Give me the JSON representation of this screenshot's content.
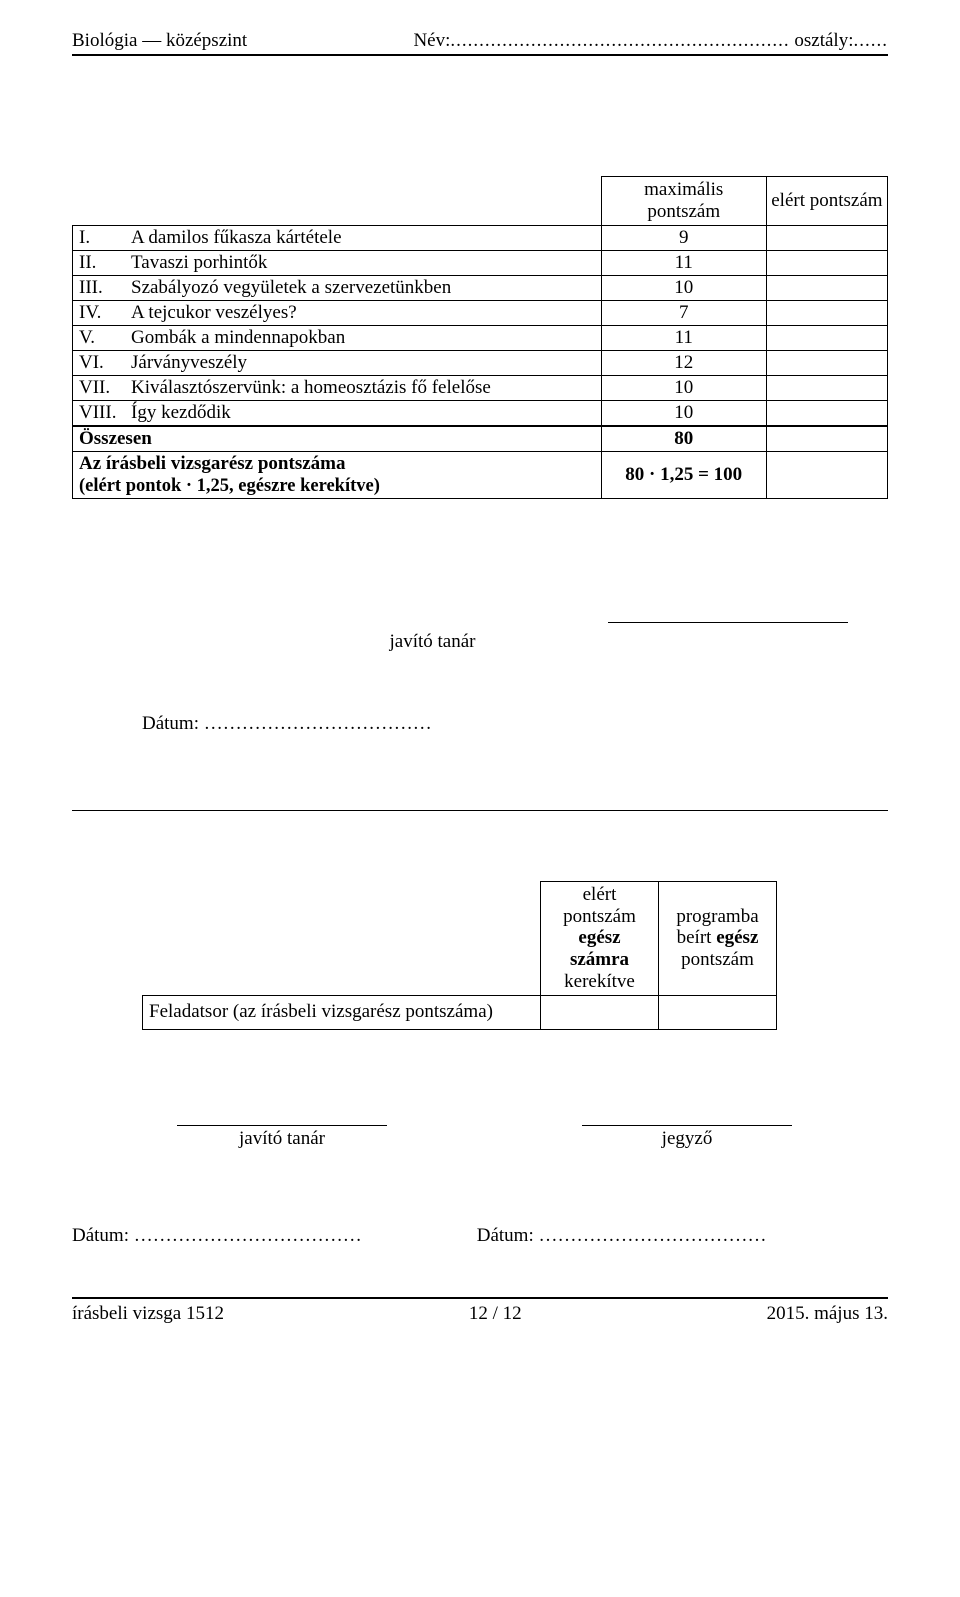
{
  "header": {
    "subject": "Biológia — középszint",
    "name_label": "Név:",
    "name_dots": "...........................................................",
    "class_label": "osztály:",
    "class_dots": "......"
  },
  "points_table": {
    "col_max": "maximális pontszám",
    "col_ach": "elért pontszám",
    "rows": [
      {
        "roman": "I.",
        "title": "A damilos fűkasza kártétele",
        "max": "9"
      },
      {
        "roman": "II.",
        "title": "Tavaszi porhintők",
        "max": "11"
      },
      {
        "roman": "III.",
        "title": "Szabályozó vegyületek a szervezetünkben",
        "max": "10"
      },
      {
        "roman": "IV.",
        "title": "A tejcukor veszélyes?",
        "max": "7"
      },
      {
        "roman": "V.",
        "title": "Gombák a mindennapokban",
        "max": "11"
      },
      {
        "roman": "VI.",
        "title": "Járványveszély",
        "max": "12"
      },
      {
        "roman": "VII.",
        "title": "Kiválasztószervünk: a homeosztázis fő felelőse",
        "max": "10"
      },
      {
        "roman": "VIII.",
        "title": "Így kezdődik",
        "max": "10"
      }
    ],
    "total_label": "Összesen",
    "total_max": "80",
    "calc_label": "Az írásbeli vizsgarész pontszáma",
    "calc_sub": "(elért pontok · 1,25, egészre kerekítve)",
    "calc_value": "80 · 1,25 = 100"
  },
  "signatures": {
    "top": "javító tanár",
    "date_label": "Dátum: ………………………………",
    "bottom_left": "javító tanár",
    "bottom_right": "jegyző"
  },
  "summary_table": {
    "hdr_left": "elért pontszám egész számra kerekítve",
    "hdr_right": "programba beírt egész pontszám",
    "row_label": "Feladatsor (az írásbeli vizsgarész pontszáma)"
  },
  "dates_bottom": {
    "left": "Dátum: ………………………………",
    "right": "Dátum: ………………………………"
  },
  "footer": {
    "left": "írásbeli vizsga 1512",
    "center": "12 / 12",
    "right": "2015. május 13."
  }
}
